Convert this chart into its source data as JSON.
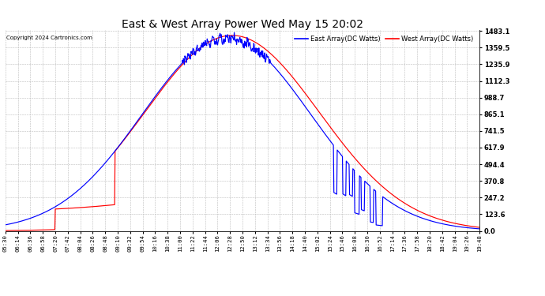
{
  "title": "East & West Array Power Wed May 15 20:02",
  "copyright": "Copyright 2024 Cartronics.com",
  "legend_east": "East Array(DC Watts)",
  "legend_west": "West Array(DC Watts)",
  "east_color": "blue",
  "west_color": "red",
  "background_color": "#ffffff",
  "grid_color": "#bbbbbb",
  "yticks": [
    0.0,
    123.6,
    247.2,
    370.8,
    494.4,
    617.9,
    741.5,
    865.1,
    988.7,
    1112.3,
    1235.9,
    1359.5,
    1483.1
  ],
  "ymax": 1483.1,
  "ymin": 0.0,
  "x_labels": [
    "05:30",
    "06:14",
    "06:36",
    "06:58",
    "07:20",
    "07:42",
    "08:04",
    "08:26",
    "08:48",
    "09:10",
    "09:32",
    "09:54",
    "10:16",
    "10:38",
    "11:00",
    "11:22",
    "11:44",
    "12:06",
    "12:28",
    "12:50",
    "13:12",
    "13:34",
    "13:56",
    "14:18",
    "14:40",
    "15:02",
    "15:24",
    "15:46",
    "16:08",
    "16:30",
    "16:52",
    "17:14",
    "17:36",
    "17:58",
    "18:20",
    "18:42",
    "19:04",
    "19:26",
    "19:48"
  ]
}
